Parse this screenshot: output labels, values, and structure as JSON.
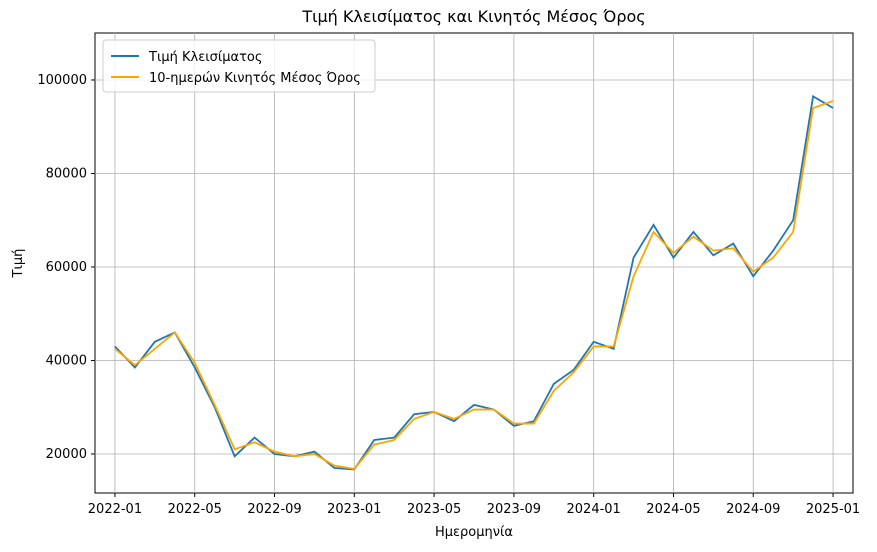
{
  "chart_data": {
    "type": "line",
    "title": "Τιμή Κλεισίματος και Κινητός Μέσος Όρος",
    "xlabel": "Ημερομηνία",
    "ylabel": "Τιμή",
    "x": [
      "2022-01",
      "2022-02",
      "2022-03",
      "2022-04",
      "2022-05",
      "2022-06",
      "2022-07",
      "2022-08",
      "2022-09",
      "2022-10",
      "2022-11",
      "2022-12",
      "2023-01",
      "2023-02",
      "2023-03",
      "2023-04",
      "2023-05",
      "2023-06",
      "2023-07",
      "2023-08",
      "2023-09",
      "2023-10",
      "2023-11",
      "2023-12",
      "2024-01",
      "2024-02",
      "2024-03",
      "2024-04",
      "2024-05",
      "2024-06",
      "2024-07",
      "2024-08",
      "2024-09",
      "2024-10",
      "2024-11",
      "2024-12",
      "2025-01"
    ],
    "series": [
      {
        "name": "Τιμή Κλεισίματος",
        "color": "#1f77b4",
        "values": [
          43000,
          38500,
          44000,
          46000,
          38500,
          30000,
          19500,
          23500,
          20000,
          19500,
          20500,
          17000,
          16700,
          23000,
          23500,
          28500,
          29000,
          27000,
          30500,
          29500,
          26000,
          27000,
          35000,
          38000,
          44000,
          42500,
          62000,
          69000,
          62000,
          67500,
          62500,
          65000,
          58000,
          63500,
          70000,
          96500,
          94000
        ]
      },
      {
        "name": "10-ημερών Κινητός Μέσος Όρος",
        "color": "#ffa500",
        "values": [
          42500,
          39000,
          42500,
          46000,
          39500,
          30500,
          21000,
          22500,
          20500,
          19500,
          20000,
          17500,
          16800,
          22000,
          23000,
          27500,
          29000,
          27500,
          29500,
          29500,
          26500,
          26500,
          33500,
          37500,
          43000,
          43000,
          58000,
          67500,
          63000,
          66500,
          63500,
          64000,
          59000,
          62000,
          67500,
          94000,
          95500
        ]
      }
    ],
    "xlim": [
      "2021-12",
      "2025-02"
    ],
    "xticks": [
      "2022-01",
      "2022-05",
      "2022-09",
      "2023-01",
      "2023-05",
      "2023-09",
      "2024-01",
      "2024-05",
      "2024-09",
      "2025-01"
    ],
    "ylim": [
      11650,
      110050
    ],
    "yticks": [
      20000,
      40000,
      60000,
      80000,
      100000
    ],
    "grid": true,
    "legend": "upper-left"
  }
}
